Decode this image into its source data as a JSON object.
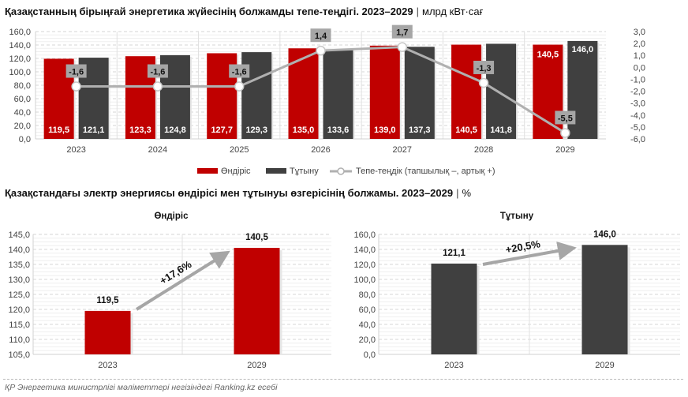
{
  "header": {
    "title_main": "Қазақстанның бірыңғай энергетика жүйесінің болжамды тепе-теңдігі. 2023–2029",
    "title_unit": "млрд кВт·сағ",
    "separator": "|"
  },
  "section2": {
    "title_main": "Қазақстандағы электр энергиясы өндірісі мен тұтынуы өзгерісінің болжамы. 2023–2029",
    "title_unit": "%",
    "separator": "|"
  },
  "footer": {
    "source": "ҚР Энергетика министрлігі мәліметтері негізіндегі Ranking.kz есебі"
  },
  "colors": {
    "production": "#c00000",
    "consumption": "#404040",
    "balance_line": "#b0b0b0",
    "label_box": "#a6a6a6"
  },
  "chart_data": [
    {
      "type": "bar",
      "title": "Қазақстанның бірыңғай энергетика жүйесінің болжамды тепе-теңдігі. 2023–2029",
      "categories": [
        "2023",
        "2024",
        "2025",
        "2026",
        "2027",
        "2028",
        "2029"
      ],
      "series": [
        {
          "name": "Өндіріс",
          "type": "bar",
          "axis": "left",
          "values": [
            119.5,
            123.3,
            127.7,
            135.0,
            139.0,
            140.5,
            140.5
          ],
          "labels": [
            "119,5",
            "123,3",
            "127,7",
            "135,0",
            "139,0",
            "140,5",
            "140,5"
          ]
        },
        {
          "name": "Тұтыну",
          "type": "bar",
          "axis": "left",
          "values": [
            121.1,
            124.8,
            129.3,
            133.6,
            137.3,
            141.8,
            146.0
          ],
          "labels": [
            "121,1",
            "124,8",
            "129,3",
            "133,6",
            "137,3",
            "141,8",
            "146,0"
          ]
        },
        {
          "name": "Тепе-теңдік (тапшылық –, артық +)",
          "type": "line",
          "axis": "right",
          "values": [
            -1.6,
            -1.6,
            -1.6,
            1.4,
            1.7,
            -1.3,
            -5.5
          ],
          "labels": [
            "-1,6",
            "-1,6",
            "-1,6",
            "1,4",
            "1,7",
            "-1,3",
            "-5,5"
          ]
        }
      ],
      "yleft": {
        "min": 0,
        "max": 160,
        "step": 20,
        "ticks": [
          "0,0",
          "20,0",
          "40,0",
          "60,0",
          "80,0",
          "100,0",
          "120,0",
          "140,0",
          "160,0"
        ]
      },
      "yright": {
        "min": -6,
        "max": 3,
        "step": 1,
        "ticks": [
          "-6,0",
          "-5,0",
          "-4,0",
          "-3,0",
          "-2,0",
          "-1,0",
          "0,0",
          "1,0",
          "2,0",
          "3,0"
        ]
      },
      "legend_position": "bottom",
      "grid": true
    },
    {
      "type": "bar",
      "title": "Өндіріс",
      "categories": [
        "2023",
        "2029"
      ],
      "values": [
        119.5,
        140.5
      ],
      "labels": [
        "119,5",
        "140,5"
      ],
      "ylim": [
        105,
        145
      ],
      "step": 5,
      "ticks": [
        "105,0",
        "110,0",
        "115,0",
        "120,0",
        "125,0",
        "130,0",
        "135,0",
        "140,0",
        "145,0"
      ],
      "annotation": "+17,6%",
      "grid": true
    },
    {
      "type": "bar",
      "title": "Тұтыну",
      "categories": [
        "2023",
        "2029"
      ],
      "values": [
        121.1,
        146.0
      ],
      "labels": [
        "121,1",
        "146,0"
      ],
      "ylim": [
        0,
        160
      ],
      "step": 20,
      "ticks": [
        "0,0",
        "20,0",
        "40,0",
        "60,0",
        "80,0",
        "100,0",
        "120,0",
        "140,0",
        "160,0"
      ],
      "annotation": "+20,5%",
      "grid": true
    }
  ]
}
